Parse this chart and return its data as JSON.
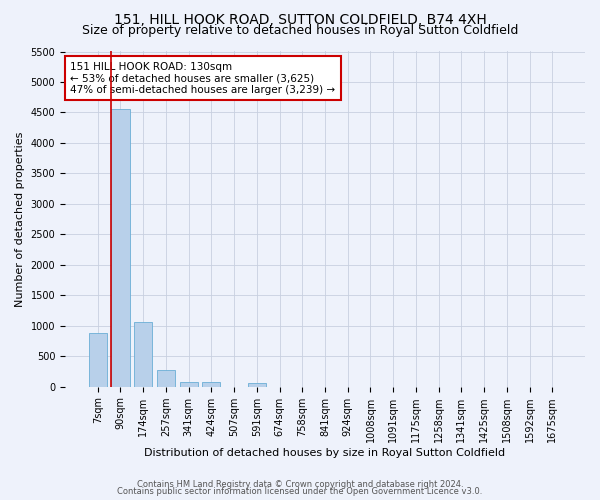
{
  "title": "151, HILL HOOK ROAD, SUTTON COLDFIELD, B74 4XH",
  "subtitle": "Size of property relative to detached houses in Royal Sutton Coldfield",
  "xlabel": "Distribution of detached houses by size in Royal Sutton Coldfield",
  "ylabel": "Number of detached properties",
  "footnote1": "Contains HM Land Registry data © Crown copyright and database right 2024.",
  "footnote2": "Contains public sector information licensed under the Open Government Licence v3.0.",
  "categories": [
    "7sqm",
    "90sqm",
    "174sqm",
    "257sqm",
    "341sqm",
    "424sqm",
    "507sqm",
    "591sqm",
    "674sqm",
    "758sqm",
    "841sqm",
    "924sqm",
    "1008sqm",
    "1091sqm",
    "1175sqm",
    "1258sqm",
    "1341sqm",
    "1425sqm",
    "1508sqm",
    "1592sqm",
    "1675sqm"
  ],
  "values": [
    880,
    4560,
    1060,
    280,
    80,
    80,
    0,
    60,
    0,
    0,
    0,
    0,
    0,
    0,
    0,
    0,
    0,
    0,
    0,
    0,
    0
  ],
  "bar_color": "#b8d0ea",
  "bar_edge_color": "#6aaed6",
  "marker_line_color": "#cc0000",
  "annotation_text": "151 HILL HOOK ROAD: 130sqm\n← 53% of detached houses are smaller (3,625)\n47% of semi-detached houses are larger (3,239) →",
  "annotation_box_color": "#ffffff",
  "annotation_box_edge": "#cc0000",
  "ylim": [
    0,
    5500
  ],
  "yticks": [
    0,
    500,
    1000,
    1500,
    2000,
    2500,
    3000,
    3500,
    4000,
    4500,
    5000,
    5500
  ],
  "background_color": "#eef2fb",
  "plot_background": "#eef2fb",
  "grid_color": "#c8d0e0",
  "title_fontsize": 10,
  "subtitle_fontsize": 9,
  "axis_label_fontsize": 8,
  "tick_fontsize": 7,
  "annot_fontsize": 7.5
}
